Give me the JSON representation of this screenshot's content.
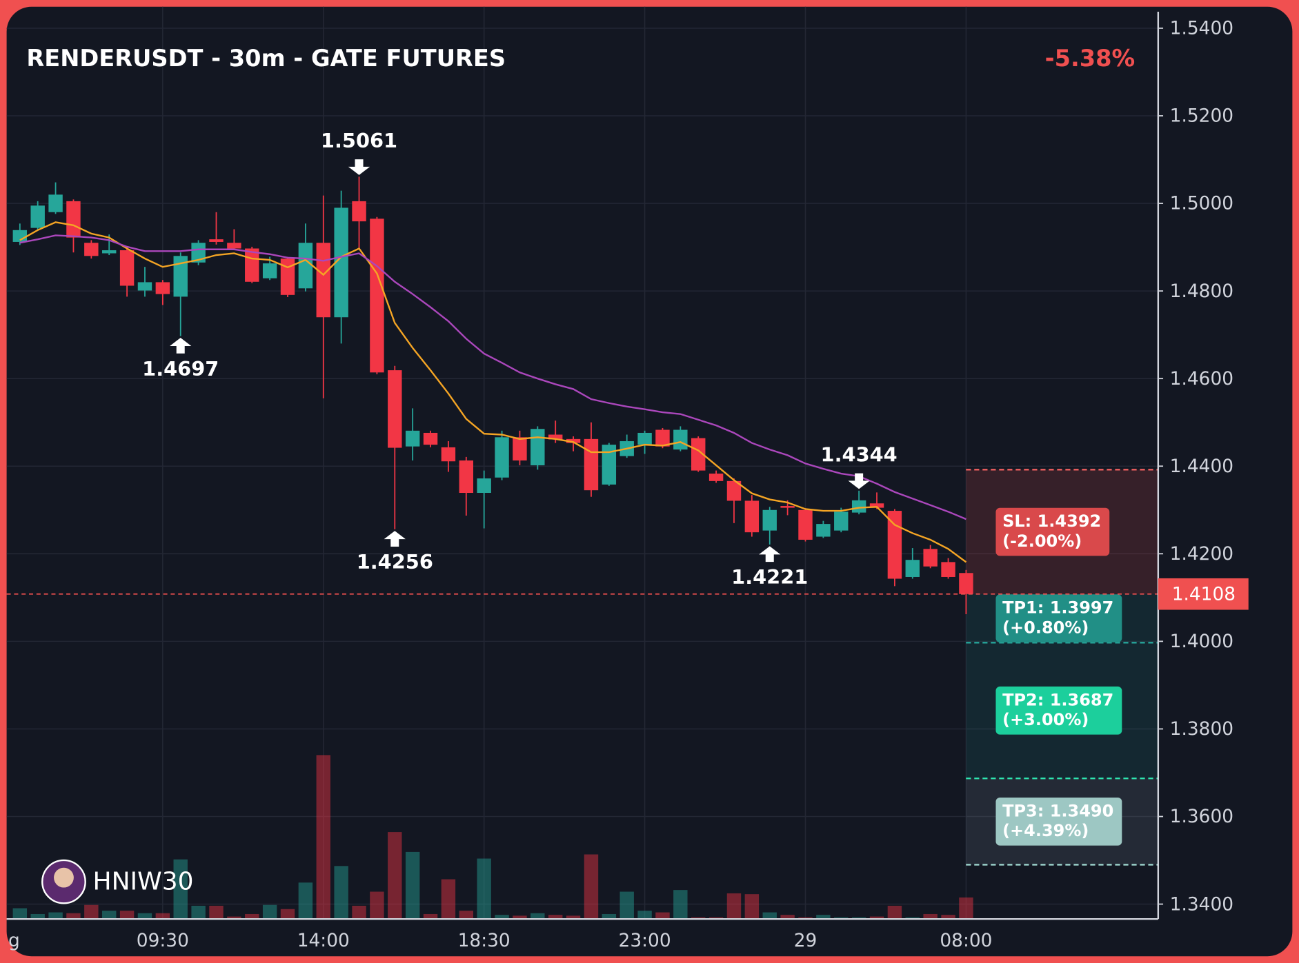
{
  "chart_data": {
    "type": "candlestick",
    "title": "RENDERUSDT - 30m - GATE FUTURES",
    "change_label": "-5.38%",
    "watermark": "HNIW30",
    "left_label": "g",
    "categories": [
      null,
      null,
      null,
      null,
      null,
      null,
      null,
      null,
      "09:30",
      null,
      null,
      null,
      null,
      null,
      null,
      null,
      null,
      "14:00",
      null,
      null,
      null,
      null,
      null,
      null,
      null,
      null,
      "18:30",
      null,
      null,
      null,
      null,
      null,
      null,
      null,
      null,
      "23:00",
      null,
      null,
      null,
      null,
      null,
      null,
      null,
      null,
      "29",
      null,
      null,
      null,
      null,
      null,
      null,
      null,
      null,
      "08:00"
    ],
    "open": [
      1.4912,
      1.4944,
      1.498,
      1.5005,
      1.491,
      1.4886,
      1.4893,
      1.4801,
      1.482,
      1.4787,
      1.4865,
      1.4918,
      1.491,
      1.4897,
      1.4829,
      1.4874,
      1.4806,
      1.491,
      1.474,
      1.5005,
      1.4965,
      1.4619,
      1.4445,
      1.4476,
      1.4443,
      1.4413,
      1.4339,
      1.4374,
      1.4466,
      1.4402,
      1.4472,
      1.4462,
      1.4462,
      1.4358,
      1.4423,
      1.4449,
      1.4483,
      1.4438,
      1.4464,
      1.4383,
      1.4366,
      1.4321,
      1.4253,
      1.4309,
      1.43,
      1.4239,
      1.4253,
      1.4294,
      1.4315,
      1.4298,
      1.4147,
      1.4211,
      1.4181,
      1.4156
    ],
    "high": [
      1.4954,
      1.5005,
      1.5048,
      1.5009,
      1.4916,
      1.4929,
      1.4901,
      1.4855,
      1.4825,
      1.4888,
      1.4916,
      1.498,
      1.4941,
      1.4901,
      1.4878,
      1.4878,
      1.4954,
      1.5018,
      1.5029,
      1.5061,
      1.4969,
      1.4629,
      1.4532,
      1.4481,
      1.4457,
      1.4421,
      1.439,
      1.4481,
      1.4481,
      1.4491,
      1.4504,
      1.4468,
      1.45,
      1.4453,
      1.4472,
      1.4481,
      1.4487,
      1.4491,
      1.4468,
      1.439,
      1.4372,
      1.4334,
      1.4307,
      1.4322,
      1.4304,
      1.4275,
      1.4305,
      1.4344,
      1.434,
      1.4302,
      1.4213,
      1.422,
      1.419,
      1.4163
    ],
    "low": [
      1.4905,
      1.4939,
      1.4976,
      1.4888,
      1.4874,
      1.4882,
      1.4787,
      1.4787,
      1.4768,
      1.4697,
      1.4859,
      1.4906,
      1.4893,
      1.4818,
      1.4825,
      1.4786,
      1.4799,
      1.4555,
      1.468,
      1.4897,
      1.461,
      1.4256,
      1.4413,
      1.4443,
      1.4387,
      1.4287,
      1.4258,
      1.4368,
      1.4402,
      1.4392,
      1.4453,
      1.4434,
      1.433,
      1.4355,
      1.4419,
      1.4428,
      1.4441,
      1.4434,
      1.4387,
      1.4362,
      1.427,
      1.4239,
      1.4221,
      1.4288,
      1.4228,
      1.4236,
      1.4249,
      1.429,
      1.4302,
      1.4126,
      1.4143,
      1.4167,
      1.4143,
      1.4062
    ],
    "close": [
      1.4939,
      1.4995,
      1.502,
      1.4922,
      1.488,
      1.4893,
      1.4812,
      1.482,
      1.4793,
      1.488,
      1.491,
      1.4912,
      1.4897,
      1.4821,
      1.4863,
      1.4791,
      1.491,
      1.474,
      1.499,
      1.4959,
      1.4614,
      1.4442,
      1.4481,
      1.4449,
      1.4411,
      1.4339,
      1.4372,
      1.4466,
      1.4413,
      1.4485,
      1.4461,
      1.4453,
      1.4345,
      1.4449,
      1.4457,
      1.4476,
      1.4445,
      1.4483,
      1.439,
      1.4366,
      1.4321,
      1.4249,
      1.43,
      1.4305,
      1.4232,
      1.4268,
      1.4296,
      1.4322,
      1.4305,
      1.4143,
      1.4186,
      1.4171,
      1.4147,
      1.4108
    ],
    "volume": [
      13,
      6,
      8,
      7,
      17,
      10,
      10,
      7,
      7,
      72,
      16,
      16,
      3,
      6,
      17,
      12,
      44,
      198,
      64,
      16,
      33,
      105,
      81,
      6,
      48,
      10,
      73,
      5,
      4,
      7,
      5,
      4,
      78,
      6,
      33,
      10,
      8,
      35,
      2,
      2,
      31,
      30,
      8,
      5,
      2,
      5,
      2,
      2,
      3,
      16,
      2,
      6,
      5,
      26
    ],
    "up_color": "#26a69a",
    "down_color": "#f23645",
    "moving_averages": [
      {
        "color": "#f5a524",
        "values": [
          1.4916,
          1.4939,
          1.4957,
          1.495,
          1.4931,
          1.4922,
          1.4897,
          1.4874,
          1.4855,
          1.4863,
          1.4871,
          1.4882,
          1.4886,
          1.4874,
          1.4871,
          1.4854,
          1.4871,
          1.4837,
          1.4878,
          1.4897,
          1.484,
          1.4727,
          1.467,
          1.4619,
          1.4566,
          1.4508,
          1.4474,
          1.4472,
          1.4462,
          1.4466,
          1.4462,
          1.4455,
          1.4432,
          1.4432,
          1.444,
          1.4449,
          1.4447,
          1.4455,
          1.4436,
          1.4402,
          1.4368,
          1.4338,
          1.4324,
          1.4317,
          1.4302,
          1.4298,
          1.4298,
          1.4305,
          1.4307,
          1.4266,
          1.4247,
          1.4232,
          1.4211,
          1.4181
        ]
      },
      {
        "color": "#ab47bc",
        "values": [
          1.491,
          1.4918,
          1.4927,
          1.4925,
          1.4922,
          1.4916,
          1.4901,
          1.4891,
          1.4891,
          1.4891,
          1.4895,
          1.4895,
          1.4895,
          1.4889,
          1.4884,
          1.4876,
          1.4874,
          1.4869,
          1.4878,
          1.4886,
          1.4857,
          1.4821,
          1.4793,
          1.4763,
          1.4731,
          1.4691,
          1.4657,
          1.4636,
          1.4614,
          1.46,
          1.4587,
          1.4576,
          1.4553,
          1.4544,
          1.4536,
          1.453,
          1.4523,
          1.4519,
          1.4506,
          1.4493,
          1.4476,
          1.4453,
          1.4438,
          1.4425,
          1.4406,
          1.4394,
          1.4383,
          1.4377,
          1.436,
          1.4341,
          1.4326,
          1.4311,
          1.4296,
          1.4279
        ]
      }
    ],
    "pivot_highs": [
      19,
      47
    ],
    "pivot_lows": [
      9,
      21,
      42
    ],
    "last_price": 1.4108,
    "last_price_color": "#f05050",
    "levels": [
      {
        "label": "SL: 1.4392",
        "change": "(-2.00%)",
        "price": 1.4392,
        "line_color": "#f06060",
        "box_color": "#d9494b",
        "zone_color": "rgba(240,80,80,0.16)"
      },
      {
        "label": "TP1: 1.3997",
        "change": "(+0.80%)",
        "price": 1.3997,
        "line_color": "#26a69a",
        "box_color": "#218f86",
        "zone_color": "rgba(30,130,130,0.16)"
      },
      {
        "label": "TP2: 1.3687",
        "change": "(+3.00%)",
        "price": 1.3687,
        "line_color": "#2ee6b0",
        "box_color": "#1ccf9c",
        "zone_color": "rgba(30,130,130,0.16)"
      },
      {
        "label": "TP3: 1.3490",
        "change": "(+4.39%)",
        "price": 1.349,
        "line_color": "#9fd7d0",
        "box_color": "#9dc7c3",
        "zone_color": "rgba(140,160,180,0.14)"
      }
    ],
    "ylim": [
      1.3366,
      1.5449
    ],
    "yticks": [
      {
        "value": 1.54,
        "label": "1.5400"
      },
      {
        "value": 1.52,
        "label": "1.5200"
      },
      {
        "value": 1.5,
        "label": "1.5000"
      },
      {
        "value": 1.48,
        "label": "1.4800"
      },
      {
        "value": 1.46,
        "label": "1.4600"
      },
      {
        "value": 1.44,
        "label": "1.4400"
      },
      {
        "value": 1.42,
        "label": "1.4200"
      },
      {
        "value": 1.4,
        "label": "1.4000"
      },
      {
        "value": 1.38,
        "label": "1.3800"
      },
      {
        "value": 1.36,
        "label": "1.3600"
      },
      {
        "value": 1.34,
        "label": "1.3400"
      }
    ],
    "grid": true
  }
}
